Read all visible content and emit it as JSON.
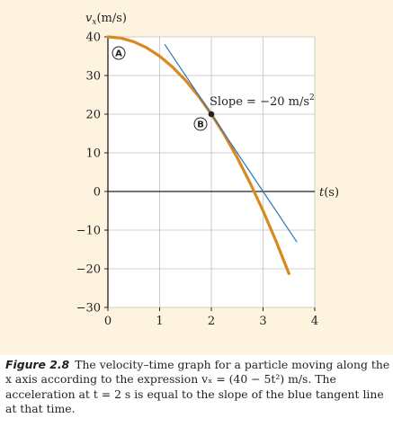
{
  "chart_data": {
    "type": "line",
    "ylabel": "v_x(m/s)",
    "xlabel": "t(s)",
    "xlim": [
      0,
      4
    ],
    "ylim": [
      -30,
      40
    ],
    "x_ticks": [
      0,
      1,
      2,
      3,
      4
    ],
    "y_ticks": [
      40,
      30,
      20,
      10,
      0,
      -10,
      -20,
      -30
    ],
    "grid": true,
    "series": [
      {
        "name": "",
        "type": "curve",
        "expression": "40 - 5t^2",
        "x": [
          0,
          0.25,
          0.5,
          0.75,
          1,
          1.25,
          1.5,
          1.75,
          2,
          2.25,
          2.5,
          2.75,
          3,
          3.25,
          3.5
        ],
        "y": [
          40,
          39.69,
          38.75,
          37.19,
          35,
          32.19,
          28.75,
          24.69,
          20,
          14.69,
          8.75,
          2.19,
          -5,
          -12.81,
          -21.25
        ],
        "color": "#d98a1f"
      },
      {
        "name": "",
        "type": "tangent",
        "x": [
          1.1,
          3.65
        ],
        "y": [
          38,
          -13
        ],
        "color": "#2a78b5"
      }
    ],
    "points": [
      {
        "label": "A",
        "x": 0,
        "y": 40
      },
      {
        "label": "B",
        "x": 2,
        "y": 20
      }
    ],
    "annotation": {
      "text_prefix": "Slope = −20 m/s",
      "text_sup": "2"
    }
  },
  "caption": {
    "figure_label": "Figure 2.8",
    "text": "The velocity–time graph for a particle moving along the x axis according to the expression vₓ = (40 − 5t²) m/s. The acceleration at t = 2 s is equal to the slope of the blue tangent line at that time."
  }
}
